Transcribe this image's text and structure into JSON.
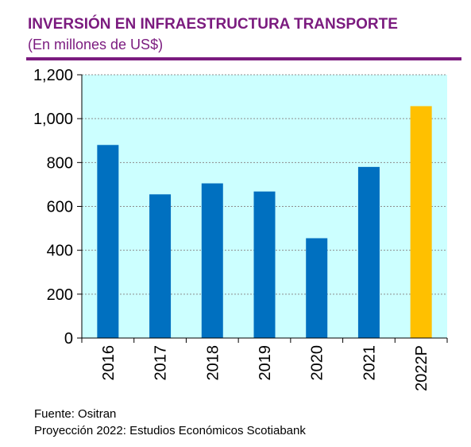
{
  "header": {
    "title": "INVERSIÓN EN INFRAESTRUCTURA TRANSPORTE",
    "subtitle": "(En millones de US$)"
  },
  "footer": {
    "source": "Fuente:  Ositran",
    "projection": "Proyección 2022: Estudios Económicos Scotiabank"
  },
  "colors": {
    "accent": "#7b1b7f",
    "plot_background": "#ccffff",
    "bar_actual": "#0070c0",
    "bar_projection": "#ffc000"
  },
  "chart_data": {
    "type": "bar",
    "categories": [
      "2016",
      "2017",
      "2018",
      "2019",
      "2020",
      "2021",
      "2022P"
    ],
    "values": [
      880,
      655,
      705,
      668,
      455,
      780,
      1057
    ],
    "projection_index": 6,
    "ylim": [
      0,
      1200
    ],
    "yticks": [
      0,
      200,
      400,
      600,
      800,
      1000,
      1200
    ],
    "ytick_labels": [
      "0",
      "200",
      "400",
      "600",
      "800",
      "1,000",
      "1,200"
    ],
    "grid": true
  }
}
